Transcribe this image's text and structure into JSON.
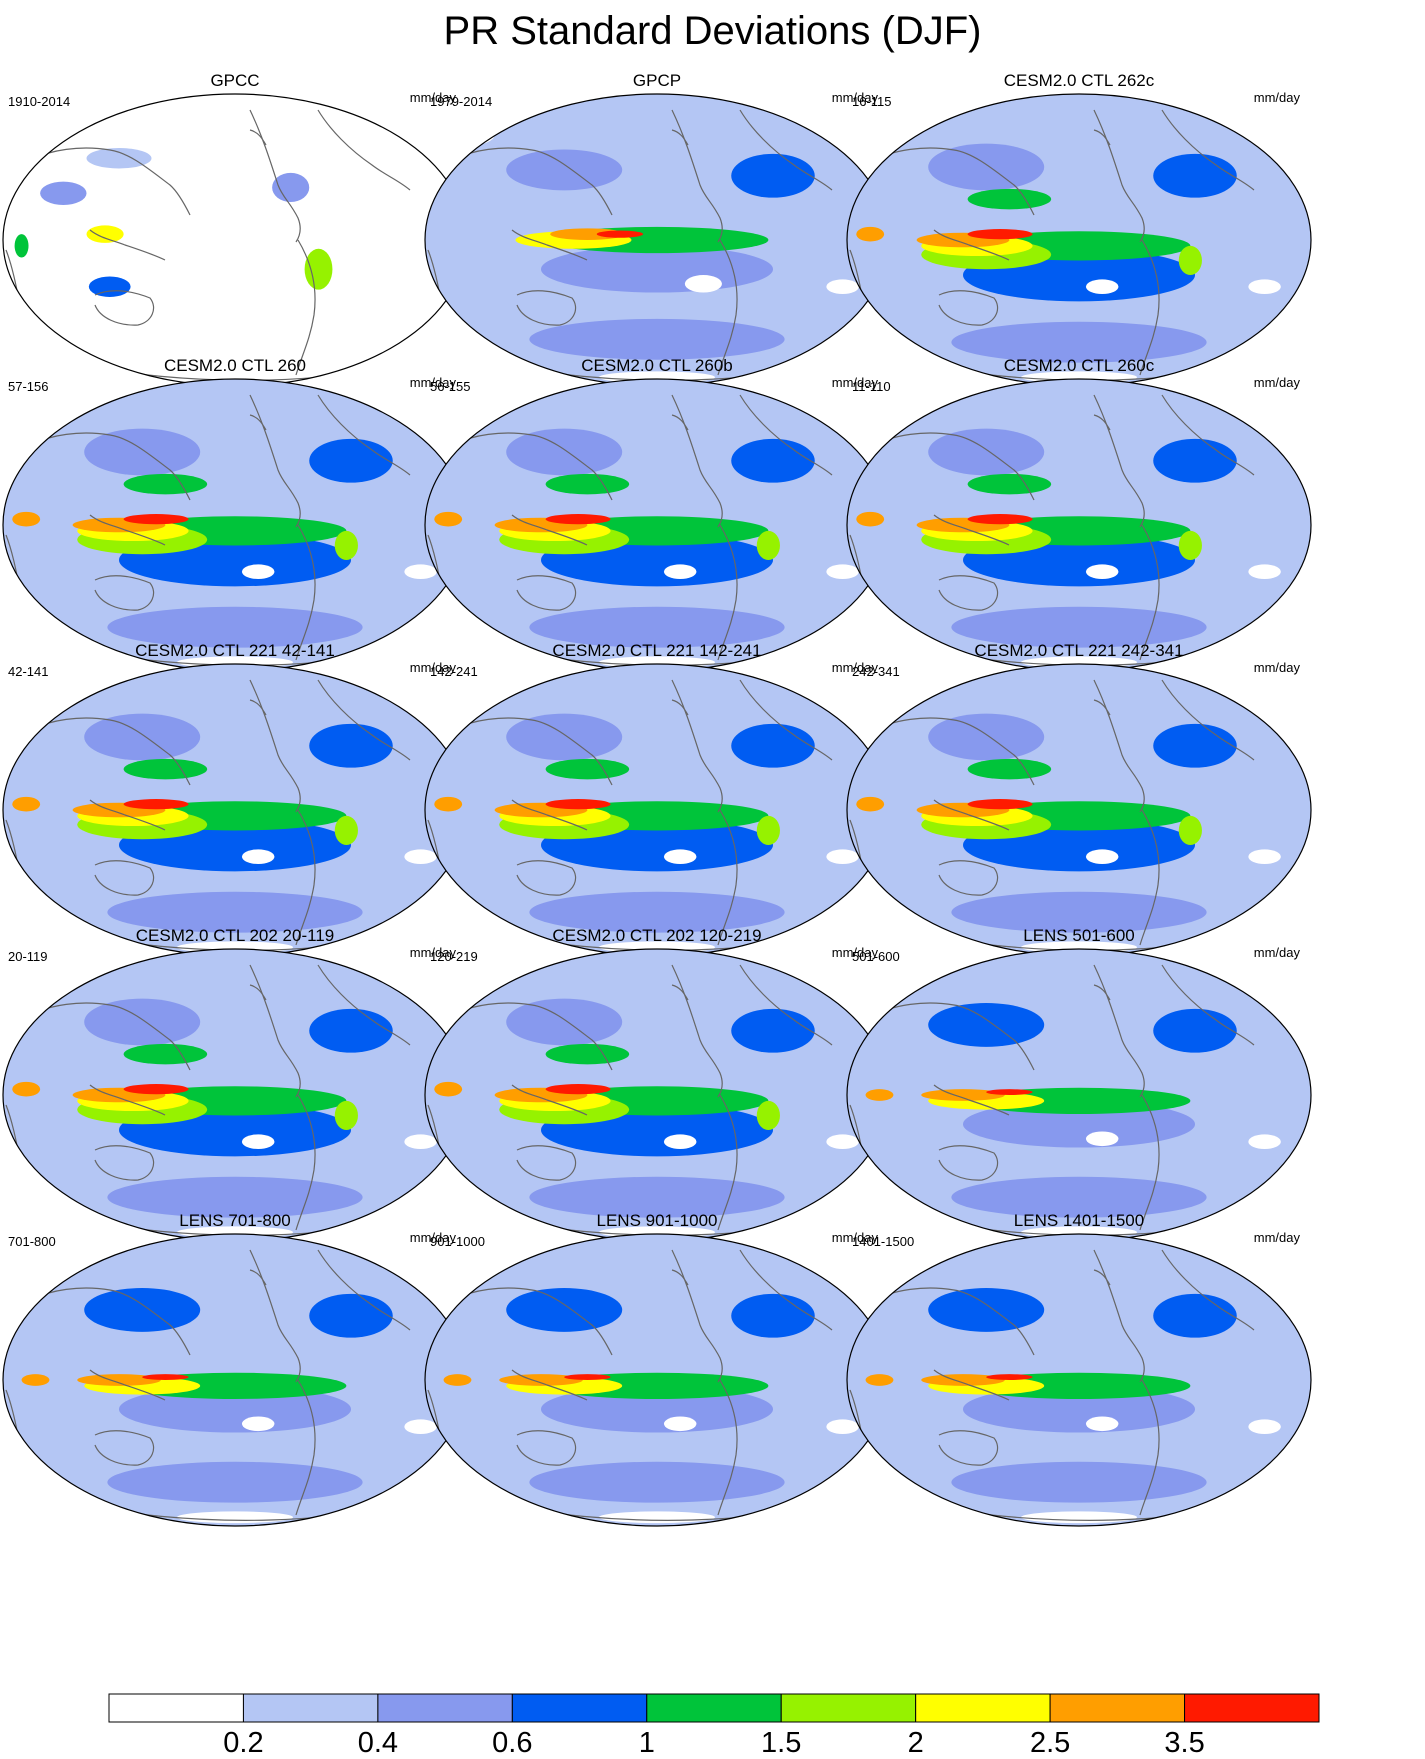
{
  "title": "PR Standard Deviations (DJF)",
  "colorbar": {
    "levels": [
      "0.2",
      "0.4",
      "0.6",
      "1",
      "1.5",
      "2",
      "2.5",
      "3.5"
    ],
    "colors": [
      "#ffffff",
      "#b4c6f4",
      "#8799ee",
      "#005cf2",
      "#00c43a",
      "#96f200",
      "#ffff00",
      "#ff9e00",
      "#ff1a00"
    ]
  },
  "panels": [
    {
      "title": "GPCC",
      "years": "1910-2014",
      "units": "mm/day",
      "style": "land"
    },
    {
      "title": "GPCP",
      "years": "1979-2014",
      "units": "mm/day",
      "style": "obs"
    },
    {
      "title": "CESM2.0 CTL 262c",
      "years": "16-115",
      "units": "mm/day",
      "style": "model"
    },
    {
      "title": "CESM2.0 CTL 260",
      "years": "57-156",
      "units": "mm/day",
      "style": "model"
    },
    {
      "title": "CESM2.0 CTL 260b",
      "years": "56-155",
      "units": "mm/day",
      "style": "model"
    },
    {
      "title": "CESM2.0 CTL 260c",
      "years": "11-110",
      "units": "mm/day",
      "style": "model"
    },
    {
      "title": "CESM2.0 CTL 221 42-141",
      "years": "42-141",
      "units": "mm/day",
      "style": "model"
    },
    {
      "title": "CESM2.0 CTL 221 142-241",
      "years": "142-241",
      "units": "mm/day",
      "style": "model"
    },
    {
      "title": "CESM2.0 CTL 221 242-341",
      "years": "242-341",
      "units": "mm/day",
      "style": "model"
    },
    {
      "title": "CESM2.0 CTL 202 20-119",
      "years": "20-119",
      "units": "mm/day",
      "style": "model"
    },
    {
      "title": "CESM2.0 CTL 202 120-219",
      "years": "120-219",
      "units": "mm/day",
      "style": "model"
    },
    {
      "title": "LENS 501-600",
      "years": "501-600",
      "units": "mm/day",
      "style": "lens"
    },
    {
      "title": "LENS 701-800",
      "years": "701-800",
      "units": "mm/day",
      "style": "lens"
    },
    {
      "title": "LENS 901-1000",
      "years": "901-1000",
      "units": "mm/day",
      "style": "lens"
    },
    {
      "title": "LENS 1401-1500",
      "years": "1401-1500",
      "units": "mm/day",
      "style": "lens"
    }
  ]
}
